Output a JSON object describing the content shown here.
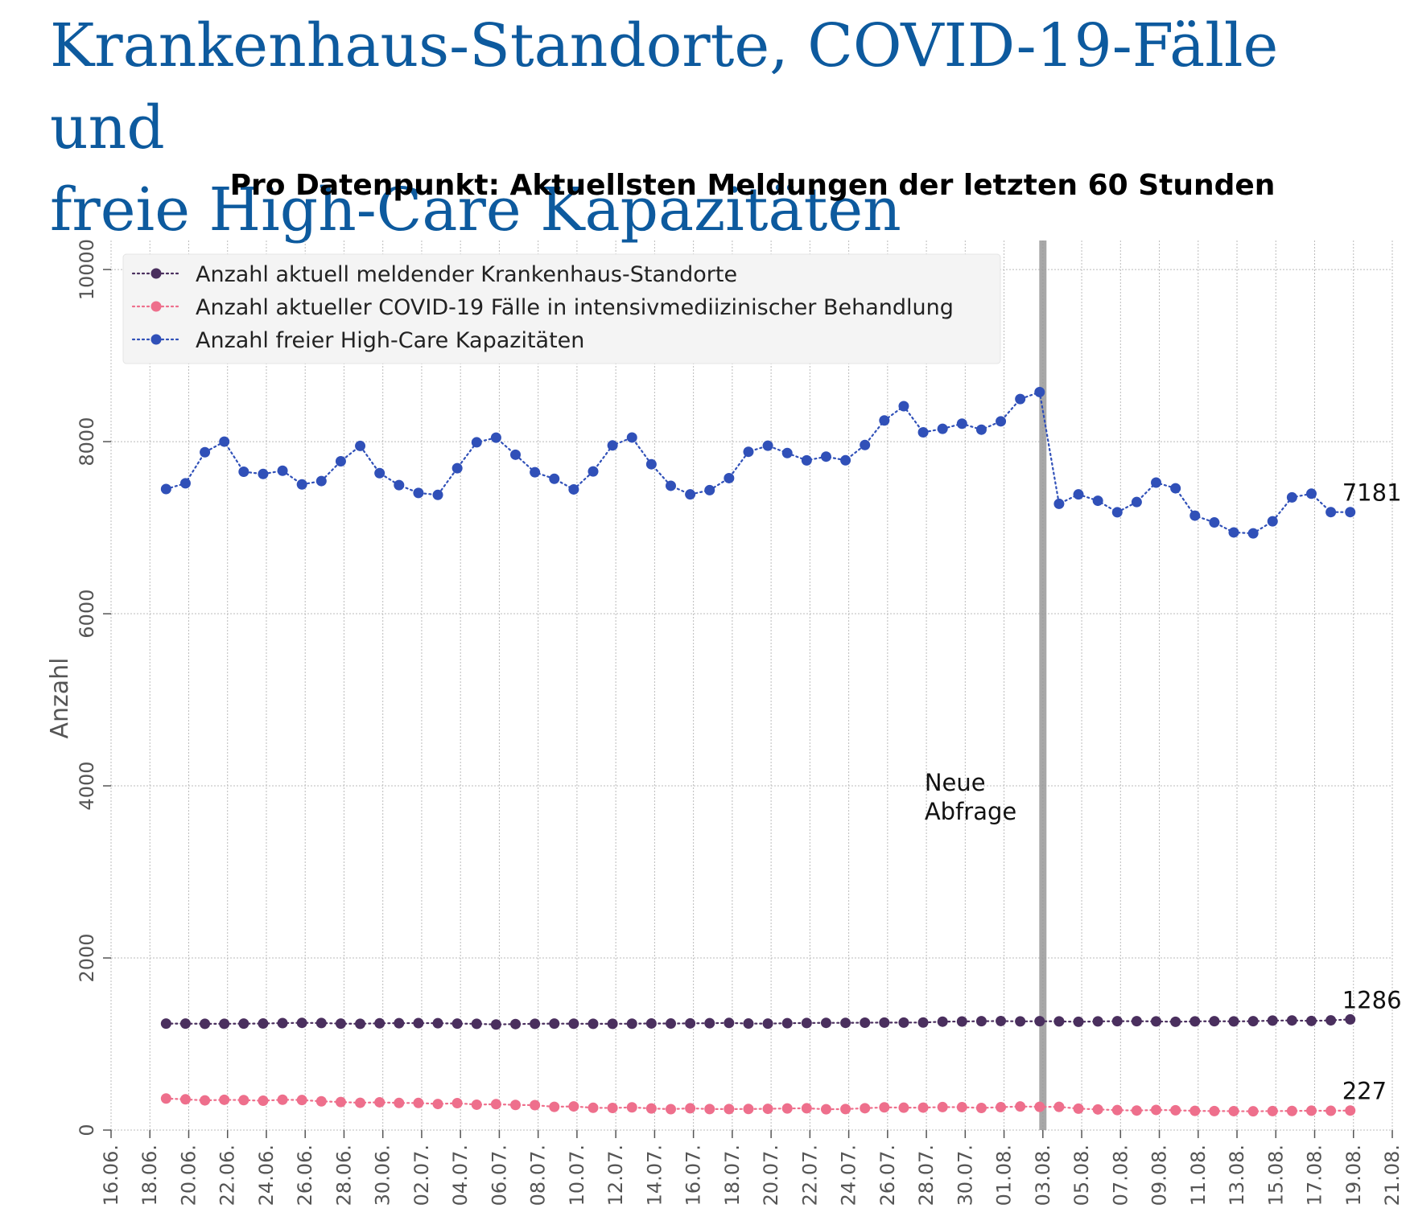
{
  "page": {
    "title_line1": "Krankenhaus-Standorte, COVID-19-Fälle und",
    "title_line2": "freie High-Care Kapazitäten"
  },
  "chart_data": {
    "type": "line",
    "title": "Pro Datenpunkt: Aktuellsten Meldungen der letzten 60 Stunden",
    "ylabel": "Anzahl",
    "xlabel": "",
    "ylim": [
      0,
      10300
    ],
    "yticks": [
      0,
      2000,
      4000,
      6000,
      8000,
      10000
    ],
    "x_start": "16.06.",
    "xticks": [
      "16.06.",
      "18.06.",
      "20.06.",
      "22.06.",
      "24.06.",
      "26.06.",
      "28.06.",
      "30.06.",
      "02.07.",
      "04.07.",
      "06.07.",
      "08.07.",
      "10.07.",
      "12.07.",
      "14.07.",
      "16.07.",
      "18.07.",
      "20.07.",
      "22.07.",
      "24.07.",
      "26.07.",
      "28.07.",
      "30.07.",
      "01.08.",
      "03.08.",
      "05.08.",
      "07.08.",
      "09.08.",
      "11.08.",
      "13.08.",
      "15.08.",
      "17.08.",
      "19.08.",
      "21.08."
    ],
    "grid": true,
    "legend_position": "top-left",
    "vertical_line": {
      "date": "03.08.",
      "label_line1": "Neue",
      "label_line2": "Abfrage",
      "color": "#999999"
    },
    "x": [
      "18.06. 20:00",
      "19.06. 20:00",
      "20.06. 20:00",
      "21.06. 20:00",
      "22.06. 20:00",
      "23.06. 20:00",
      "24.06. 20:00",
      "25.06. 20:00",
      "26.06. 20:00",
      "27.06. 20:00",
      "28.06. 20:00",
      "29.06. 20:00",
      "30.06. 20:00",
      "01.07. 20:00",
      "02.07. 20:00",
      "03.07. 20:00",
      "04.07. 20:00",
      "05.07. 20:00",
      "06.07. 20:00",
      "07.07. 20:00",
      "08.07. 20:00",
      "09.07. 20:00",
      "10.07. 20:00",
      "11.07. 20:00",
      "12.07. 20:00",
      "13.07. 20:00",
      "14.07. 20:00",
      "15.07. 20:00",
      "16.07. 20:00",
      "17.07. 20:00",
      "18.07. 20:00",
      "19.07. 20:00",
      "20.07. 20:00",
      "21.07. 20:00",
      "22.07. 20:00",
      "23.07. 20:00",
      "24.07. 20:00",
      "25.07. 20:00",
      "26.07. 20:00",
      "27.07. 20:00",
      "28.07. 20:00",
      "29.07. 20:00",
      "30.07. 20:00",
      "31.07. 20:00",
      "01.08. 20:00",
      "02.08. 20:00",
      "03.08. 20:00",
      "04.08. 20:00",
      "05.08. 20:00",
      "06.08. 20:00",
      "07.08. 20:00",
      "08.08. 20:00",
      "09.08. 20:00",
      "10.08. 20:00",
      "11.08. 20:00",
      "12.08. 20:00",
      "13.08. 20:00",
      "14.08. 20:00",
      "15.08. 20:00",
      "16.08. 20:00",
      "17.08. 20:00",
      "18.08. 20:00"
    ],
    "series": [
      {
        "name": "Anzahl aktuell meldender Krankenhaus-Standorte",
        "color": "#4a2f5e",
        "end_label": "1286",
        "values": [
          1237,
          1237,
          1235,
          1235,
          1237,
          1238,
          1243,
          1246,
          1244,
          1237,
          1235,
          1241,
          1242,
          1243,
          1242,
          1237,
          1235,
          1227,
          1232,
          1235,
          1237,
          1236,
          1235,
          1235,
          1236,
          1239,
          1238,
          1240,
          1242,
          1245,
          1238,
          1237,
          1242,
          1244,
          1246,
          1246,
          1248,
          1249,
          1249,
          1250,
          1260,
          1262,
          1265,
          1267,
          1263,
          1265,
          1263,
          1258,
          1263,
          1265,
          1265,
          1263,
          1258,
          1263,
          1265,
          1263,
          1265,
          1272,
          1274,
          1268,
          1275,
          1286
        ]
      },
      {
        "name": "Anzahl aktueller COVID-19 Fälle in intensivmediizinischer Behandlung",
        "color": "#ee6f8c",
        "end_label": "227",
        "values": [
          367,
          357,
          345,
          352,
          348,
          341,
          353,
          349,
          334,
          326,
          317,
          323,
          315,
          315,
          303,
          313,
          295,
          301,
          292,
          290,
          270,
          275,
          259,
          257,
          264,
          251,
          243,
          253,
          244,
          244,
          245,
          247,
          251,
          253,
          242,
          244,
          254,
          264,
          260,
          261,
          267,
          266,
          257,
          266,
          274,
          270,
          270,
          249,
          240,
          232,
          227,
          234,
          230,
          223,
          221,
          220,
          218,
          221,
          222,
          225,
          224,
          227
        ]
      },
      {
        "name": "Anzahl freier High-Care Kapazitäten",
        "color": "#3050b8",
        "end_label": "7181",
        "values": [
          7449,
          7516,
          7877,
          8000,
          7650,
          7624,
          7662,
          7503,
          7542,
          7772,
          7950,
          7634,
          7495,
          7404,
          7381,
          7691,
          7992,
          8046,
          7848,
          7644,
          7568,
          7445,
          7654,
          7956,
          8048,
          7737,
          7487,
          7387,
          7436,
          7576,
          7882,
          7953,
          7867,
          7782,
          7826,
          7783,
          7961,
          8246,
          8412,
          8108,
          8149,
          8209,
          8139,
          8236,
          8495,
          8576,
          7277,
          7387,
          7313,
          7179,
          7298,
          7524,
          7458,
          7140,
          7061,
          6945,
          6934,
          7074,
          7352,
          7395,
          7181,
          7181
        ]
      }
    ]
  }
}
